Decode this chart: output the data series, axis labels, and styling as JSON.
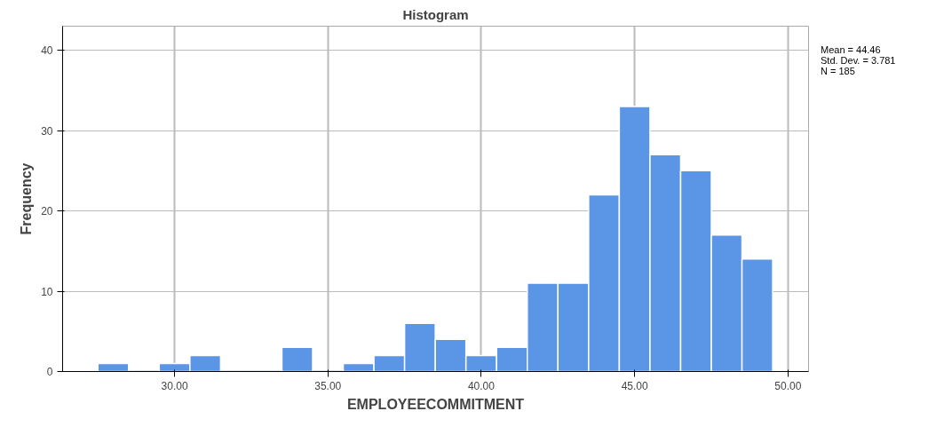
{
  "chart_data": {
    "type": "histogram",
    "title": "Histogram",
    "xlabel": "EMPLOYEECOMMITMENT",
    "ylabel": "Frequency",
    "bins": [
      27.5,
      28.5,
      29.5,
      30.5,
      31.5,
      32.5,
      33.5,
      34.5,
      35.5,
      36.5,
      37.5,
      38.5,
      39.5,
      40.5,
      41.5,
      42.5,
      43.5,
      44.5,
      45.5,
      46.5,
      47.5,
      48.5,
      49.5
    ],
    "values": [
      1,
      0,
      1,
      2,
      0,
      0,
      3,
      0,
      1,
      2,
      6,
      4,
      2,
      3,
      11,
      11,
      22,
      33,
      27,
      25,
      17,
      14
    ],
    "color": "#5b95e5",
    "xlim": [
      26.35,
      50.67
    ],
    "ylim": [
      0,
      43
    ],
    "xticks": [
      {
        "value": 30,
        "label": "30.00"
      },
      {
        "value": 35,
        "label": "35.00"
      },
      {
        "value": 40,
        "label": "40.00"
      },
      {
        "value": 45,
        "label": "45.00"
      },
      {
        "value": 50,
        "label": "50.00"
      }
    ],
    "yticks": [
      0,
      10,
      20,
      30,
      40
    ],
    "grid": true,
    "annotations": [
      "Mean = 44.46",
      "Std. Dev. = 3.781",
      "N = 185"
    ]
  }
}
